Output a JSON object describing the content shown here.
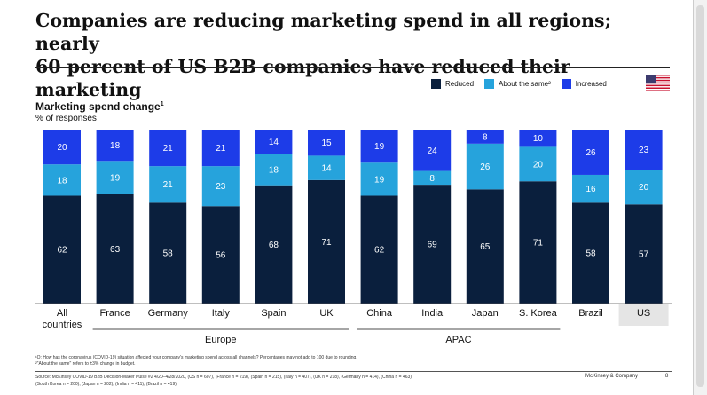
{
  "title_line1": "Companies are reducing marketing spend in all regions; nearly",
  "title_line2": "60 percent of US B2B companies have reduced their marketing",
  "chart_title": "Marketing spend change",
  "chart_title_sup": "1",
  "chart_subtitle": "% of responses",
  "legend": [
    {
      "label": "Reduced",
      "color": "#0a1f3d"
    },
    {
      "label": "About the same²",
      "color": "#26a3dc"
    },
    {
      "label": "Increased",
      "color": "#1d3ce8"
    }
  ],
  "colors": {
    "reduced": "#0a1f3d",
    "same": "#26a3dc",
    "increased": "#1d3ce8",
    "us_highlight": "#e5e5e5"
  },
  "flag_icon": "us-flag-icon",
  "chart_data": {
    "type": "bar",
    "stacked": true,
    "categories": [
      "All countries",
      "France",
      "Germany",
      "Italy",
      "Spain",
      "UK",
      "China",
      "India",
      "Japan",
      "S. Korea",
      "Brazil",
      "US"
    ],
    "series": [
      {
        "name": "Reduced",
        "values": [
          62,
          63,
          58,
          56,
          68,
          71,
          62,
          69,
          65,
          71,
          58,
          57
        ]
      },
      {
        "name": "About the same²",
        "values": [
          18,
          19,
          21,
          23,
          18,
          14,
          19,
          8,
          26,
          20,
          16,
          20
        ]
      },
      {
        "name": "Increased",
        "values": [
          20,
          18,
          21,
          21,
          14,
          15,
          19,
          24,
          8,
          10,
          26,
          23
        ]
      }
    ],
    "groups": [
      {
        "label": "Europe",
        "from": 1,
        "to": 5
      },
      {
        "label": "APAC",
        "from": 6,
        "to": 9
      }
    ],
    "highlight": "US",
    "ylim": [
      0,
      100
    ]
  },
  "footnote1": "¹Q: How has the coronavirus (COVID-19) situation affected your company's marketing spend across all channels? Percentages may not add to 100 due to rounding.",
  "footnote2": "²\"About the same\" refers to ±3% change in budget.",
  "source_line1": "Source: McKinsey COVID-19 B2B Decision-Maker Pulse #2 4/20–4/28/2020, (US n = 607), (France n = 219), (Spain n = 215), (Italy n = 407), (UK n = 218), (Germany n = 414), (China n = 463),",
  "source_line2": "(South Korea n = 200), (Japan n = 202), (India n = 411), (Brazil n = 419)",
  "brand": "McKinsey & Company",
  "page_number": "8"
}
